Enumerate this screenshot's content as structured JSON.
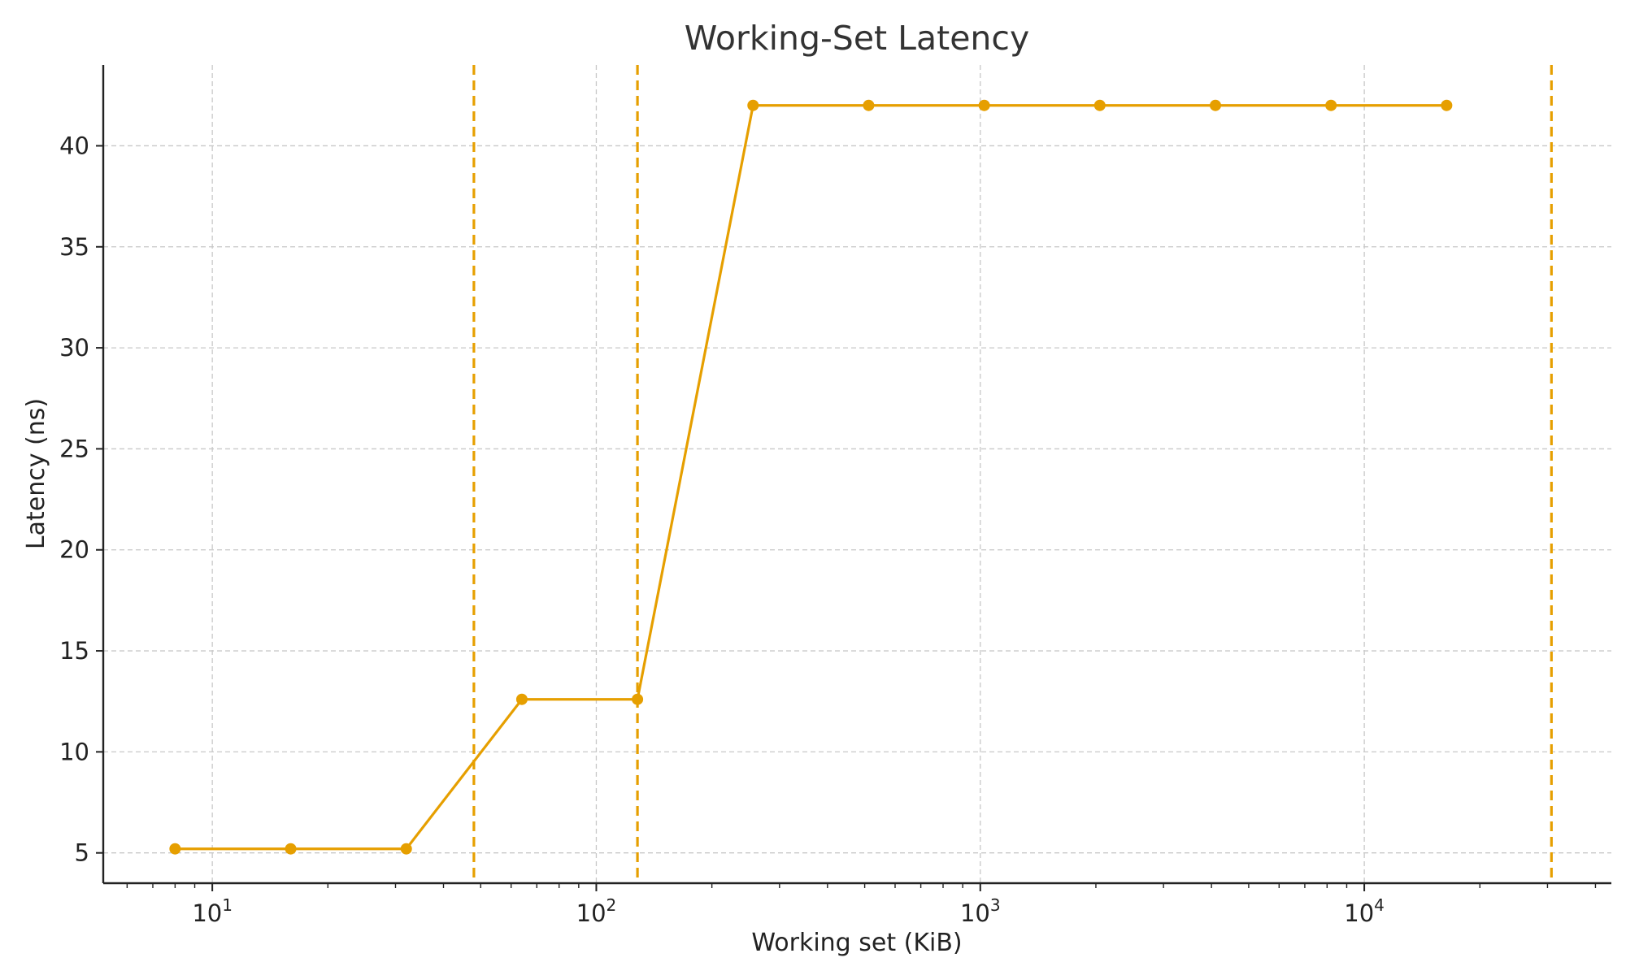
{
  "chart_data": {
    "type": "line",
    "title": "Working-Set Latency",
    "xlabel": "Working set (KiB)",
    "ylabel": "Latency (ns)",
    "x_scale": "log",
    "xlim": [
      5.2,
      44000
    ],
    "ylim": [
      3.5,
      44
    ],
    "x_ticks": [
      {
        "value": 10,
        "base": "10",
        "exp": "1"
      },
      {
        "value": 100,
        "base": "10",
        "exp": "2"
      },
      {
        "value": 1000,
        "base": "10",
        "exp": "3"
      },
      {
        "value": 10000,
        "base": "10",
        "exp": "4"
      }
    ],
    "y_ticks": [
      5,
      10,
      15,
      20,
      25,
      30,
      35,
      40
    ],
    "grid": true,
    "series": [
      {
        "color": "#E69F00",
        "marker": "circle",
        "x": [
          8,
          16,
          32,
          64,
          128,
          256,
          512,
          1024,
          2048,
          4096,
          8192,
          16384
        ],
        "y": [
          5.2,
          5.2,
          5.2,
          12.6,
          12.6,
          42,
          42,
          42,
          42,
          42,
          42,
          42
        ]
      }
    ],
    "vertical_lines": [
      {
        "x": 48,
        "color": "#E69F00",
        "style": "dashed"
      },
      {
        "x": 128,
        "color": "#E69F00",
        "style": "dashed"
      },
      {
        "x": 30720,
        "color": "#E69F00",
        "style": "dashed"
      }
    ]
  }
}
